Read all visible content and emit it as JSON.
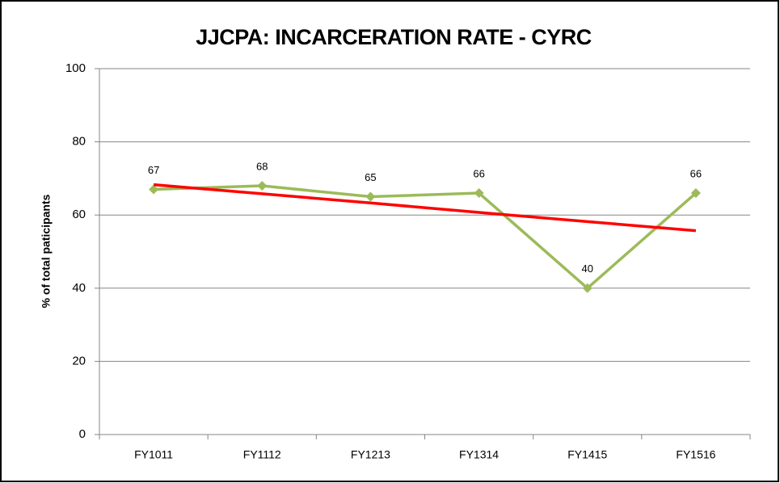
{
  "chart_data": {
    "type": "line",
    "title": "JJCPA: INCARCERATION RATE - CYRC",
    "y_label": "% of total paticipants",
    "categories": [
      "FY1011",
      "FY1112",
      "FY1213",
      "FY1314",
      "FY1415",
      "FY1516"
    ],
    "series": [
      {
        "color": "#9bbb59",
        "values": [
          67,
          68,
          65,
          66,
          40,
          66
        ]
      }
    ],
    "trendline": {
      "color": "#ff0000",
      "values": [
        68.3,
        65.8,
        63.3,
        60.7,
        58.2,
        55.7
      ]
    },
    "ylim": [
      0,
      100
    ],
    "yticks": [
      0,
      20,
      40,
      60,
      80,
      100
    ],
    "grid": true
  }
}
